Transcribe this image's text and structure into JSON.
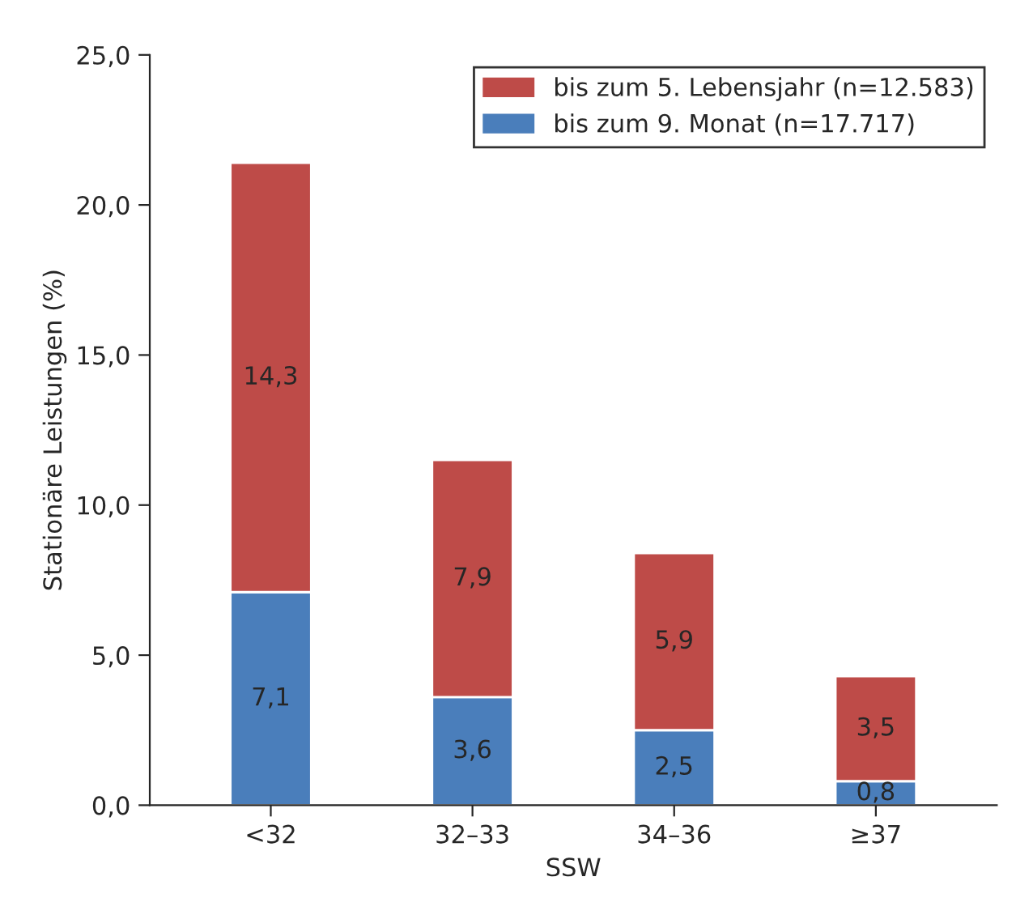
{
  "chart_data": {
    "type": "bar",
    "stacked": true,
    "xlabel": "SSW",
    "ylabel": "Stationäre Leistungen (%)",
    "categories": [
      "<32",
      "32–33",
      "34–36",
      "≥37"
    ],
    "series": [
      {
        "name": "bis zum 9. Monat (n=17.717)",
        "color": "#4a7ebb",
        "values": [
          7.1,
          3.6,
          2.5,
          0.8
        ],
        "value_labels": [
          "7,1",
          "3,6",
          "2,5",
          "0,8"
        ]
      },
      {
        "name": "bis zum 5. Lebensjahr (n=12.583)",
        "color": "#be4b48",
        "values": [
          14.3,
          7.9,
          5.9,
          3.5
        ],
        "value_labels": [
          "14,3",
          "7,9",
          "5,9",
          "3,5"
        ]
      }
    ],
    "ylim": [
      0,
      25
    ],
    "yticks": [
      {
        "value": 0,
        "label": "0,0"
      },
      {
        "value": 5,
        "label": "5,0"
      },
      {
        "value": 10,
        "label": "10,0"
      },
      {
        "value": 15,
        "label": "15,0"
      },
      {
        "value": 20,
        "label": "20,0"
      },
      {
        "value": 25,
        "label": "25,0"
      }
    ],
    "legend": "top right",
    "grid": false
  }
}
